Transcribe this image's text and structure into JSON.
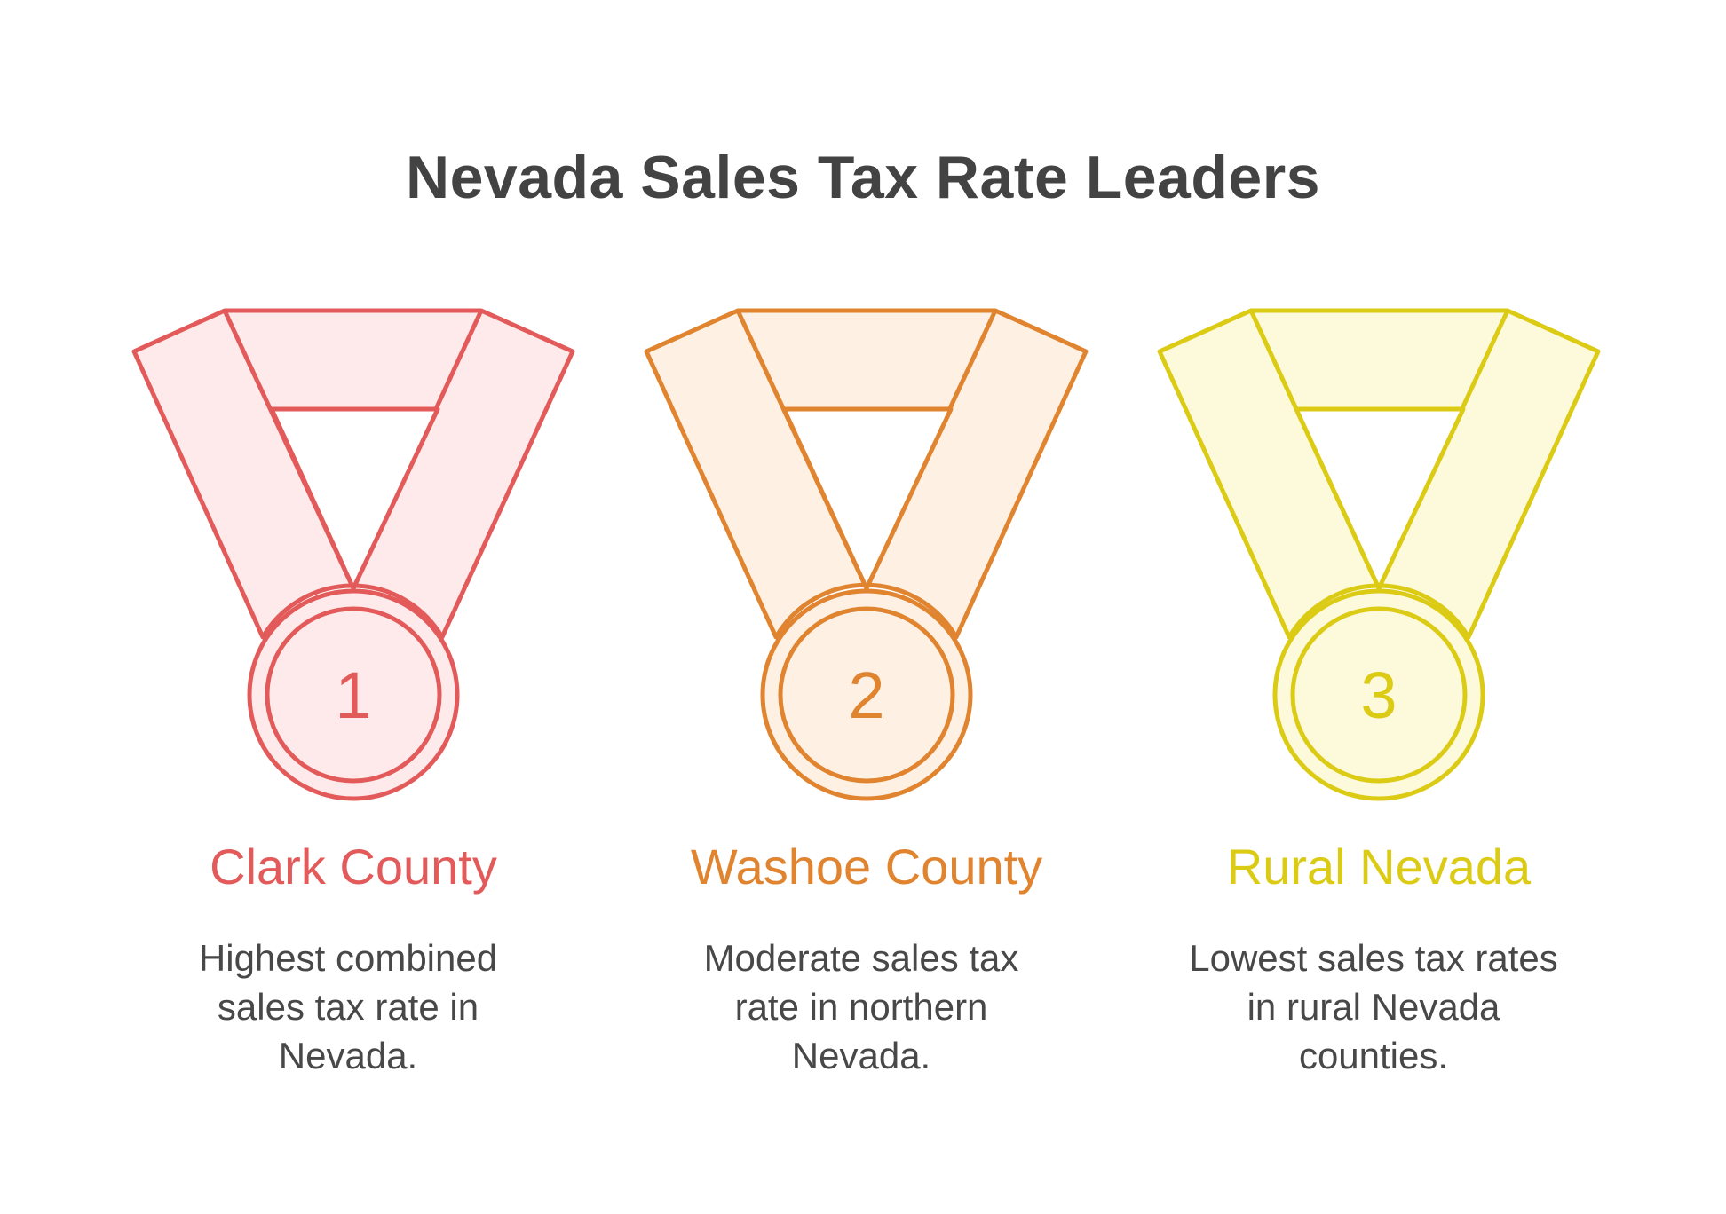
{
  "title": "Nevada Sales Tax Rate Leaders",
  "medals": [
    {
      "rank": "1",
      "name": "Clark County",
      "description": "Highest combined sales tax rate in Nevada.",
      "stroke_color": "#e35a5a",
      "fill_color": "#feeaea"
    },
    {
      "rank": "2",
      "name": "Washoe County",
      "description": "Moderate sales tax rate in northern Nevada.",
      "stroke_color": "#e08430",
      "fill_color": "#fef0e3"
    },
    {
      "rank": "3",
      "name": "Rural Nevada",
      "description": "Lowest sales tax rates in rural Nevada counties.",
      "stroke_color": "#dccb14",
      "fill_color": "#fdf9db"
    }
  ]
}
